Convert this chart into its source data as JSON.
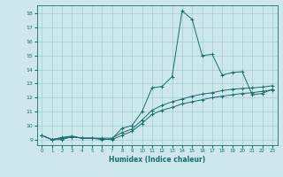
{
  "bg_color": "#cce8ec",
  "grid_color": "#a0cdd4",
  "line_color": "#1a6b6b",
  "xlabel": "Humidex (Indice chaleur)",
  "xlim": [
    -0.5,
    23.5
  ],
  "ylim": [
    8.6,
    18.6
  ],
  "yticks": [
    9,
    10,
    11,
    12,
    13,
    14,
    15,
    16,
    17,
    18
  ],
  "xticks": [
    0,
    1,
    2,
    3,
    4,
    5,
    6,
    7,
    8,
    9,
    10,
    11,
    12,
    13,
    14,
    15,
    16,
    17,
    18,
    19,
    20,
    21,
    22,
    23
  ],
  "line1_x": [
    0,
    1,
    2,
    3,
    4,
    5,
    6,
    7,
    8,
    9,
    10,
    11,
    12,
    13,
    14,
    15,
    16,
    17,
    18,
    19,
    20,
    21,
    22,
    23
  ],
  "line1_y": [
    9.3,
    9.0,
    9.0,
    9.2,
    9.1,
    9.1,
    9.0,
    9.05,
    9.8,
    10.0,
    11.0,
    12.7,
    12.8,
    13.5,
    18.2,
    17.6,
    15.0,
    15.1,
    13.6,
    13.8,
    13.85,
    12.2,
    12.3,
    12.6
  ],
  "line2_x": [
    0,
    1,
    2,
    3,
    4,
    5,
    6,
    7,
    8,
    9,
    10,
    11,
    12,
    13,
    14,
    15,
    16,
    17,
    18,
    19,
    20,
    21,
    22,
    23
  ],
  "line2_y": [
    9.3,
    9.0,
    9.15,
    9.25,
    9.1,
    9.1,
    9.1,
    9.1,
    9.5,
    9.75,
    10.4,
    11.1,
    11.45,
    11.7,
    11.9,
    12.1,
    12.25,
    12.35,
    12.5,
    12.6,
    12.65,
    12.7,
    12.75,
    12.85
  ],
  "line3_x": [
    0,
    1,
    2,
    3,
    4,
    5,
    6,
    7,
    8,
    9,
    10,
    11,
    12,
    13,
    14,
    15,
    16,
    17,
    18,
    19,
    20,
    21,
    22,
    23
  ],
  "line3_y": [
    9.3,
    9.0,
    9.1,
    9.2,
    9.1,
    9.1,
    9.05,
    9.0,
    9.3,
    9.6,
    10.15,
    10.8,
    11.1,
    11.3,
    11.55,
    11.7,
    11.85,
    12.0,
    12.1,
    12.2,
    12.3,
    12.35,
    12.45,
    12.55
  ]
}
